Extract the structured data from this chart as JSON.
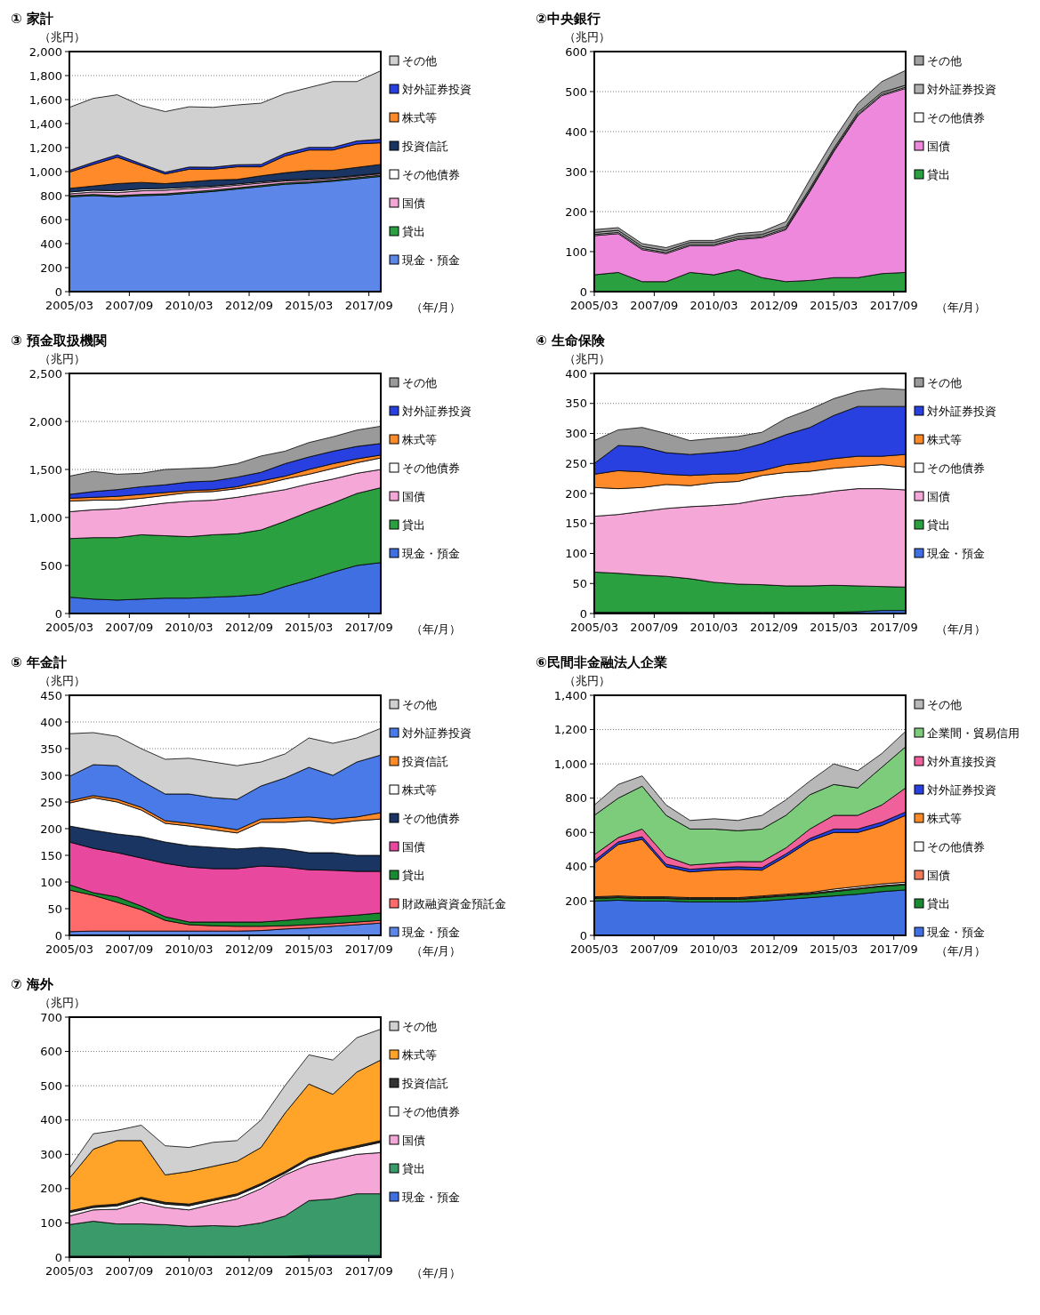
{
  "chart_data": [
    {
      "type": "area",
      "stacked": true,
      "title": "① 家計",
      "ylabel": "（兆円）",
      "xlabel": "（年/月）",
      "grid": "y",
      "legend": "right",
      "x": [
        "2005-03",
        "2006-03",
        "2007-03",
        "2008-03",
        "2009-03",
        "2010-03",
        "2011-03",
        "2012-03",
        "2013-03",
        "2014-03",
        "2015-03",
        "2016-03",
        "2017-03",
        "2018-03"
      ],
      "xlim": [
        "2005-03",
        "2018-03"
      ],
      "xticks": [
        {
          "value": "2005-03",
          "label": "2005/03"
        },
        {
          "value": "2007-09",
          "label": "2007/09"
        },
        {
          "value": "2010-03",
          "label": "2010/03"
        },
        {
          "value": "2012-09",
          "label": "2012/09"
        },
        {
          "value": "2015-03",
          "label": "2015/03"
        },
        {
          "value": "2017-09",
          "label": "2017/09"
        }
      ],
      "ylim": [
        0,
        2000
      ],
      "yticks": [
        0,
        200,
        400,
        600,
        800,
        {
          "value": 1000,
          "label": "1,000"
        },
        {
          "value": 1200,
          "label": "1,200"
        },
        {
          "value": 1400,
          "label": "1,400"
        },
        {
          "value": 1600,
          "label": "1,600"
        },
        {
          "value": 1800,
          "label": "1,800"
        },
        {
          "value": 2000,
          "label": "2,000"
        }
      ],
      "series": [
        {
          "name": "現金・預金",
          "color": "#5c86e8",
          "values": [
            790,
            800,
            790,
            800,
            805,
            820,
            835,
            855,
            875,
            895,
            905,
            920,
            940,
            960
          ]
        },
        {
          "name": "貸出",
          "color": "#2aa040",
          "values": [
            10,
            10,
            10,
            10,
            10,
            10,
            10,
            10,
            10,
            10,
            10,
            10,
            10,
            10
          ]
        },
        {
          "name": "国債",
          "color": "#f2a6d6",
          "values": [
            15,
            20,
            25,
            30,
            30,
            28,
            25,
            22,
            20,
            17,
            15,
            13,
            12,
            12
          ]
        },
        {
          "name": "その他債券",
          "color": "#ffffff",
          "values": [
            15,
            15,
            15,
            15,
            15,
            12,
            10,
            10,
            10,
            8,
            8,
            7,
            6,
            5
          ]
        },
        {
          "name": "投資信託",
          "color": "#1b3563",
          "values": [
            30,
            35,
            60,
            55,
            40,
            45,
            50,
            38,
            50,
            60,
            72,
            60,
            67,
            73
          ]
        },
        {
          "name": "株式等",
          "color": "#ff8a2a",
          "values": [
            135,
            180,
            220,
            140,
            80,
            105,
            90,
            105,
            75,
            140,
            170,
            170,
            195,
            180
          ]
        },
        {
          "name": "対外証券投資",
          "color": "#2840e0",
          "values": [
            15,
            18,
            20,
            15,
            15,
            18,
            17,
            17,
            20,
            22,
            22,
            22,
            25,
            30
          ]
        },
        {
          "name": "その他",
          "color": "#d0d0d0",
          "values": [
            525,
            532,
            500,
            485,
            505,
            502,
            498,
            498,
            510,
            498,
            498,
            548,
            495,
            570
          ]
        }
      ]
    },
    {
      "type": "area",
      "stacked": true,
      "title": "②中央銀行",
      "ylabel": "（兆円）",
      "xlabel": "（年/月）",
      "grid": "y",
      "legend": "right",
      "x": [
        "2005-03",
        "2006-03",
        "2007-03",
        "2008-03",
        "2009-03",
        "2010-03",
        "2011-03",
        "2012-03",
        "2013-03",
        "2014-03",
        "2015-03",
        "2016-03",
        "2017-03",
        "2018-03"
      ],
      "xlim": [
        "2005-03",
        "2018-03"
      ],
      "xticks": [
        {
          "value": "2005-03",
          "label": "2005/03"
        },
        {
          "value": "2007-09",
          "label": "2007/09"
        },
        {
          "value": "2010-03",
          "label": "2010/03"
        },
        {
          "value": "2012-09",
          "label": "2012/09"
        },
        {
          "value": "2015-03",
          "label": "2015/03"
        },
        {
          "value": "2017-09",
          "label": "2017/09"
        }
      ],
      "ylim": [
        0,
        600
      ],
      "yticks": [
        0,
        100,
        200,
        300,
        400,
        500,
        600
      ],
      "series": [
        {
          "name": "貸出",
          "color": "#2aa040",
          "values": [
            42,
            48,
            25,
            25,
            48,
            42,
            55,
            35,
            25,
            28,
            35,
            35,
            45,
            48
          ]
        },
        {
          "name": "国債",
          "color": "#ee88dc",
          "values": [
            98,
            97,
            80,
            70,
            67,
            73,
            75,
            100,
            130,
            222,
            315,
            405,
            445,
            460
          ]
        },
        {
          "name": "その他債券",
          "color": "#ffffff",
          "values": [
            3,
            3,
            3,
            3,
            3,
            3,
            3,
            3,
            3,
            3,
            3,
            3,
            3,
            3
          ]
        },
        {
          "name": "対外証券投資",
          "color": "#b0b0b0",
          "values": [
            5,
            5,
            5,
            5,
            5,
            5,
            5,
            5,
            5,
            5,
            5,
            5,
            5,
            5
          ]
        },
        {
          "name": "その他",
          "color": "#a0a0a0",
          "values": [
            7,
            7,
            7,
            7,
            5,
            5,
            7,
            7,
            12,
            22,
            22,
            22,
            27,
            37
          ]
        }
      ]
    },
    {
      "type": "area",
      "stacked": true,
      "title": "③ 預金取扱機関",
      "ylabel": "（兆円）",
      "xlabel": "（年/月）",
      "grid": "y",
      "legend": "right",
      "x": [
        "2005-03",
        "2006-03",
        "2007-03",
        "2008-03",
        "2009-03",
        "2010-03",
        "2011-03",
        "2012-03",
        "2013-03",
        "2014-03",
        "2015-03",
        "2016-03",
        "2017-03",
        "2018-03"
      ],
      "xlim": [
        "2005-03",
        "2018-03"
      ],
      "xticks": [
        {
          "value": "2005-03",
          "label": "2005/03"
        },
        {
          "value": "2007-09",
          "label": "2007/09"
        },
        {
          "value": "2010-03",
          "label": "2010/03"
        },
        {
          "value": "2012-09",
          "label": "2012/09"
        },
        {
          "value": "2015-03",
          "label": "2015/03"
        },
        {
          "value": "2017-09",
          "label": "2017/09"
        }
      ],
      "ylim": [
        0,
        2500
      ],
      "yticks": [
        0,
        500,
        {
          "value": 1000,
          "label": "1,000"
        },
        {
          "value": 1500,
          "label": "1,500"
        },
        {
          "value": 2000,
          "label": "2,000"
        },
        {
          "value": 2500,
          "label": "2,500"
        }
      ],
      "series": [
        {
          "name": "現金・預金",
          "color": "#3f6fe0",
          "values": [
            170,
            150,
            140,
            150,
            160,
            160,
            170,
            180,
            200,
            280,
            350,
            430,
            500,
            530
          ]
        },
        {
          "name": "貸出",
          "color": "#2aa040",
          "values": [
            610,
            640,
            650,
            670,
            650,
            640,
            650,
            650,
            670,
            680,
            710,
            720,
            750,
            780
          ]
        },
        {
          "name": "国債",
          "color": "#f5a8d8",
          "values": [
            280,
            290,
            300,
            300,
            340,
            370,
            360,
            380,
            380,
            330,
            290,
            250,
            210,
            190
          ]
        },
        {
          "name": "その他債券",
          "color": "#ffffff",
          "values": [
            110,
            100,
            90,
            80,
            80,
            90,
            90,
            90,
            90,
            110,
            100,
            110,
            110,
            120
          ]
        },
        {
          "name": "株式等",
          "color": "#ff8a2a",
          "values": [
            30,
            30,
            40,
            40,
            30,
            20,
            20,
            20,
            40,
            30,
            50,
            50,
            40,
            30
          ]
        },
        {
          "name": "対外証券投資",
          "color": "#2840e0",
          "values": [
            40,
            60,
            70,
            80,
            80,
            90,
            90,
            100,
            90,
            130,
            130,
            130,
            130,
            120
          ]
        },
        {
          "name": "その他",
          "color": "#9a9a9a",
          "values": [
            190,
            210,
            160,
            140,
            160,
            140,
            140,
            140,
            170,
            130,
            150,
            150,
            170,
            180
          ]
        }
      ]
    },
    {
      "type": "area",
      "stacked": true,
      "title": "④ 生命保険",
      "ylabel": "（兆円）",
      "xlabel": "（年/月）",
      "grid": "y",
      "legend": "right",
      "x": [
        "2005-03",
        "2006-03",
        "2007-03",
        "2008-03",
        "2009-03",
        "2010-03",
        "2011-03",
        "2012-03",
        "2013-03",
        "2014-03",
        "2015-03",
        "2016-03",
        "2017-03",
        "2018-03"
      ],
      "xlim": [
        "2005-03",
        "2018-03"
      ],
      "xticks": [
        {
          "value": "2005-03",
          "label": "2005/03"
        },
        {
          "value": "2007-09",
          "label": "2007/09"
        },
        {
          "value": "2010-03",
          "label": "2010/03"
        },
        {
          "value": "2012-09",
          "label": "2012/09"
        },
        {
          "value": "2015-03",
          "label": "2015/03"
        },
        {
          "value": "2017-09",
          "label": "2017/09"
        }
      ],
      "ylim": [
        0,
        400
      ],
      "yticks": [
        0,
        50,
        100,
        150,
        200,
        250,
        300,
        350,
        400
      ],
      "series": [
        {
          "name": "現金・預金",
          "color": "#3f6fe0",
          "values": [
            2,
            2,
            2,
            2,
            2,
            2,
            2,
            2,
            2,
            2,
            2,
            3,
            5,
            5
          ]
        },
        {
          "name": "貸出",
          "color": "#2aa040",
          "values": [
            67,
            65,
            62,
            60,
            56,
            50,
            47,
            46,
            44,
            44,
            45,
            43,
            40,
            39
          ]
        },
        {
          "name": "国債",
          "color": "#f5a8d8",
          "values": [
            93,
            98,
            106,
            113,
            120,
            128,
            134,
            142,
            149,
            152,
            157,
            162,
            163,
            162
          ]
        },
        {
          "name": "その他債券",
          "color": "#ffffff",
          "values": [
            48,
            43,
            40,
            40,
            35,
            38,
            37,
            40,
            40,
            39,
            38,
            37,
            40,
            38
          ]
        },
        {
          "name": "株式等",
          "color": "#ff8a2a",
          "values": [
            22,
            30,
            26,
            17,
            17,
            14,
            13,
            8,
            13,
            15,
            16,
            17,
            14,
            21
          ]
        },
        {
          "name": "対外証券投資",
          "color": "#2840e0",
          "values": [
            18,
            42,
            42,
            36,
            35,
            36,
            39,
            45,
            50,
            58,
            72,
            83,
            83,
            80
          ]
        },
        {
          "name": "その他",
          "color": "#9a9a9a",
          "values": [
            38,
            26,
            32,
            32,
            23,
            24,
            23,
            19,
            27,
            30,
            28,
            25,
            30,
            28
          ]
        }
      ]
    },
    {
      "type": "area",
      "stacked": true,
      "title": "⑤ 年金計",
      "ylabel": "（兆円）",
      "xlabel": "（年/月）",
      "grid": "y",
      "legend": "right",
      "x": [
        "2005-03",
        "2006-03",
        "2007-03",
        "2008-03",
        "2009-03",
        "2010-03",
        "2011-03",
        "2012-03",
        "2013-03",
        "2014-03",
        "2015-03",
        "2016-03",
        "2017-03",
        "2018-03"
      ],
      "xlim": [
        "2005-03",
        "2018-03"
      ],
      "xticks": [
        {
          "value": "2005-03",
          "label": "2005/03"
        },
        {
          "value": "2007-09",
          "label": "2007/09"
        },
        {
          "value": "2010-03",
          "label": "2010/03"
        },
        {
          "value": "2012-09",
          "label": "2012/09"
        },
        {
          "value": "2015-03",
          "label": "2015/03"
        },
        {
          "value": "2017-09",
          "label": "2017/09"
        }
      ],
      "ylim": [
        0,
        450
      ],
      "yticks": [
        0,
        50,
        100,
        150,
        200,
        250,
        300,
        350,
        400,
        450
      ],
      "series": [
        {
          "name": "現金・預金",
          "color": "#5c86e8",
          "values": [
            7,
            8,
            8,
            8,
            8,
            8,
            8,
            8,
            9,
            12,
            14,
            17,
            20,
            23
          ]
        },
        {
          "name": "財政融資資金預託金",
          "color": "#ff6a6a",
          "values": [
            78,
            67,
            54,
            40,
            20,
            12,
            10,
            9,
            8,
            6,
            6,
            5,
            5,
            5
          ]
        },
        {
          "name": "貸出",
          "color": "#1a8a30",
          "values": [
            10,
            5,
            10,
            7,
            7,
            5,
            7,
            8,
            8,
            10,
            12,
            13,
            13,
            14
          ]
        },
        {
          "name": "国債",
          "color": "#e8489e",
          "values": [
            80,
            83,
            83,
            90,
            100,
            103,
            100,
            100,
            105,
            100,
            91,
            87,
            82,
            78
          ]
        },
        {
          "name": "その他債券",
          "color": "#1b3563",
          "values": [
            30,
            34,
            35,
            40,
            40,
            40,
            40,
            37,
            35,
            34,
            32,
            33,
            30,
            30
          ]
        },
        {
          "name": "株式等",
          "color": "#ffffff",
          "values": [
            43,
            61,
            60,
            50,
            35,
            37,
            33,
            30,
            47,
            50,
            60,
            55,
            65,
            68
          ]
        },
        {
          "name": "投資信託",
          "color": "#ff8a2a",
          "values": [
            4,
            4,
            5,
            5,
            5,
            5,
            7,
            6,
            6,
            8,
            7,
            8,
            7,
            12
          ]
        },
        {
          "name": "対外証券投資",
          "color": "#4a7ae8",
          "values": [
            46,
            58,
            63,
            50,
            50,
            55,
            53,
            57,
            62,
            75,
            93,
            82,
            103,
            108
          ]
        },
        {
          "name": "その他",
          "color": "#d0d0d0",
          "values": [
            80,
            60,
            55,
            60,
            65,
            67,
            67,
            63,
            45,
            45,
            55,
            60,
            45,
            50
          ]
        }
      ]
    },
    {
      "type": "area",
      "stacked": true,
      "title": "⑥民間非金融法人企業",
      "ylabel": "（兆円）",
      "xlabel": "（年/月）",
      "grid": "y",
      "legend": "right",
      "x": [
        "2005-03",
        "2006-03",
        "2007-03",
        "2008-03",
        "2009-03",
        "2010-03",
        "2011-03",
        "2012-03",
        "2013-03",
        "2014-03",
        "2015-03",
        "2016-03",
        "2017-03",
        "2018-03"
      ],
      "xlim": [
        "2005-03",
        "2018-03"
      ],
      "xticks": [
        {
          "value": "2005-03",
          "label": "2005/03"
        },
        {
          "value": "2007-09",
          "label": "2007/09"
        },
        {
          "value": "2010-03",
          "label": "2010/03"
        },
        {
          "value": "2012-09",
          "label": "2012/09"
        },
        {
          "value": "2015-03",
          "label": "2015/03"
        },
        {
          "value": "2017-09",
          "label": "2017/09"
        }
      ],
      "ylim": [
        0,
        1400
      ],
      "yticks": [
        0,
        200,
        400,
        600,
        800,
        {
          "value": 1000,
          "label": "1,000"
        },
        {
          "value": 1200,
          "label": "1,200"
        },
        {
          "value": 1400,
          "label": "1,400"
        }
      ],
      "series": [
        {
          "name": "現金・預金",
          "color": "#3f6fe0",
          "values": [
            200,
            205,
            200,
            200,
            195,
            195,
            195,
            200,
            210,
            220,
            230,
            240,
            255,
            265
          ]
        },
        {
          "name": "貸出",
          "color": "#1a8a30",
          "values": [
            15,
            15,
            15,
            15,
            15,
            15,
            15,
            20,
            20,
            20,
            25,
            30,
            30,
            30
          ]
        },
        {
          "name": "国債",
          "color": "#f07a5a",
          "values": [
            5,
            5,
            5,
            5,
            5,
            5,
            5,
            5,
            5,
            5,
            5,
            5,
            5,
            5
          ]
        },
        {
          "name": "その他債券",
          "color": "#ffffff",
          "values": [
            5,
            5,
            5,
            5,
            5,
            5,
            5,
            5,
            5,
            5,
            10,
            10,
            10,
            10
          ]
        },
        {
          "name": "株式等",
          "color": "#ff8a2a",
          "values": [
            195,
            300,
            335,
            175,
            150,
            160,
            165,
            150,
            220,
            300,
            330,
            315,
            340,
            390
          ]
        },
        {
          "name": "対外証券投資",
          "color": "#2840e0",
          "values": [
            15,
            15,
            15,
            15,
            15,
            15,
            15,
            15,
            15,
            15,
            20,
            20,
            20,
            20
          ]
        },
        {
          "name": "対外直接投資",
          "color": "#f0609a",
          "values": [
            35,
            25,
            45,
            45,
            25,
            25,
            30,
            35,
            35,
            55,
            80,
            80,
            100,
            140
          ]
        },
        {
          "name": "企業間・貿易信用",
          "color": "#7ccc7c",
          "values": [
            230,
            230,
            250,
            240,
            210,
            200,
            180,
            190,
            190,
            200,
            180,
            160,
            220,
            240
          ]
        },
        {
          "name": "その他",
          "color": "#b8b8b8",
          "values": [
            60,
            80,
            60,
            60,
            50,
            60,
            60,
            80,
            90,
            80,
            120,
            100,
            80,
            90
          ]
        }
      ]
    },
    {
      "type": "area",
      "stacked": true,
      "title": "⑦ 海外",
      "ylabel": "（兆円）",
      "xlabel": "（年/月）",
      "grid": "y",
      "legend": "right",
      "x": [
        "2005-03",
        "2006-03",
        "2007-03",
        "2008-03",
        "2009-03",
        "2010-03",
        "2011-03",
        "2012-03",
        "2013-03",
        "2014-03",
        "2015-03",
        "2016-03",
        "2017-03",
        "2018-03"
      ],
      "xlim": [
        "2005-03",
        "2018-03"
      ],
      "xticks": [
        {
          "value": "2005-03",
          "label": "2005/03"
        },
        {
          "value": "2007-09",
          "label": "2007/09"
        },
        {
          "value": "2010-03",
          "label": "2010/03"
        },
        {
          "value": "2012-09",
          "label": "2012/09"
        },
        {
          "value": "2015-03",
          "label": "2015/03"
        },
        {
          "value": "2017-09",
          "label": "2017/09"
        }
      ],
      "ylim": [
        0,
        700
      ],
      "yticks": [
        0,
        100,
        200,
        300,
        400,
        500,
        600,
        700
      ],
      "series": [
        {
          "name": "現金・預金",
          "color": "#3f6fe0",
          "values": [
            3,
            3,
            3,
            3,
            3,
            3,
            3,
            3,
            3,
            3,
            5,
            5,
            5,
            5
          ]
        },
        {
          "name": "貸出",
          "color": "#3a9a6a",
          "values": [
            92,
            102,
            94,
            94,
            92,
            87,
            89,
            87,
            97,
            117,
            160,
            165,
            180,
            180
          ]
        },
        {
          "name": "国債",
          "color": "#f5a8d8",
          "values": [
            25,
            33,
            43,
            63,
            50,
            48,
            63,
            80,
            100,
            120,
            105,
            115,
            115,
            120
          ]
        },
        {
          "name": "その他債券",
          "color": "#ffffff",
          "values": [
            10,
            7,
            10,
            10,
            10,
            12,
            10,
            10,
            10,
            5,
            15,
            20,
            20,
            30
          ]
        },
        {
          "name": "投資信託",
          "color": "#333333",
          "values": [
            5,
            5,
            5,
            5,
            5,
            5,
            5,
            5,
            5,
            5,
            5,
            5,
            5,
            5
          ]
        },
        {
          "name": "株式等",
          "color": "#ffa428",
          "values": [
            95,
            165,
            185,
            165,
            80,
            95,
            95,
            95,
            105,
            170,
            215,
            165,
            215,
            235
          ]
        },
        {
          "name": "その他",
          "color": "#d0d0d0",
          "values": [
            30,
            45,
            30,
            45,
            85,
            70,
            70,
            60,
            80,
            80,
            85,
            100,
            100,
            90
          ]
        }
      ]
    }
  ]
}
